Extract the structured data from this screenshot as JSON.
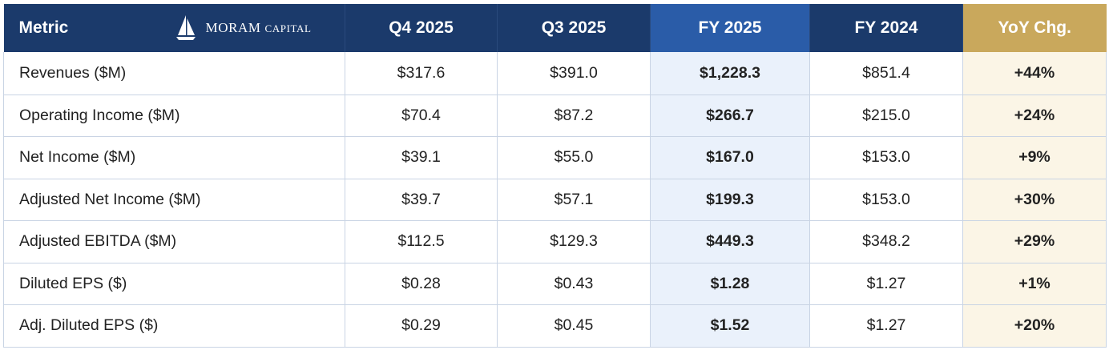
{
  "brand": {
    "name_main": "MORAM",
    "name_sc": "Capital"
  },
  "columns": {
    "metric": "Metric",
    "q4": "Q4 2025",
    "q3": "Q3 2025",
    "fy25": "FY 2025",
    "fy24": "FY 2024",
    "yoy": "YoY Chg."
  },
  "colors": {
    "header_navy": "#1b3a6b",
    "header_fy25_blue": "#2a5ca8",
    "header_yoy_gold": "#c9a85c",
    "fy25_cell_bg": "#eaf1fb",
    "yoy_cell_bg": "#fbf5e6"
  },
  "rows": [
    {
      "metric": "Revenues ($M)",
      "q4": "$317.6",
      "q3": "$391.0",
      "fy25": "$1,228.3",
      "fy24": "$851.4",
      "yoy": "+44%"
    },
    {
      "metric": "Operating Income ($M)",
      "q4": "$70.4",
      "q3": "$87.2",
      "fy25": "$266.7",
      "fy24": "$215.0",
      "yoy": "+24%"
    },
    {
      "metric": "Net Income ($M)",
      "q4": "$39.1",
      "q3": "$55.0",
      "fy25": "$167.0",
      "fy24": "$153.0",
      "yoy": "+9%"
    },
    {
      "metric": "Adjusted Net Income ($M)",
      "q4": "$39.7",
      "q3": "$57.1",
      "fy25": "$199.3",
      "fy24": "$153.0",
      "yoy": "+30%"
    },
    {
      "metric": "Adjusted EBITDA ($M)",
      "q4": "$112.5",
      "q3": "$129.3",
      "fy25": "$449.3",
      "fy24": "$348.2",
      "yoy": "+29%"
    },
    {
      "metric": "Diluted EPS ($)",
      "q4": "$0.28",
      "q3": "$0.43",
      "fy25": "$1.28",
      "fy24": "$1.27",
      "yoy": "+1%"
    },
    {
      "metric": "Adj. Diluted EPS ($)",
      "q4": "$0.29",
      "q3": "$0.45",
      "fy25": "$1.52",
      "fy24": "$1.27",
      "yoy": "+20%"
    }
  ]
}
